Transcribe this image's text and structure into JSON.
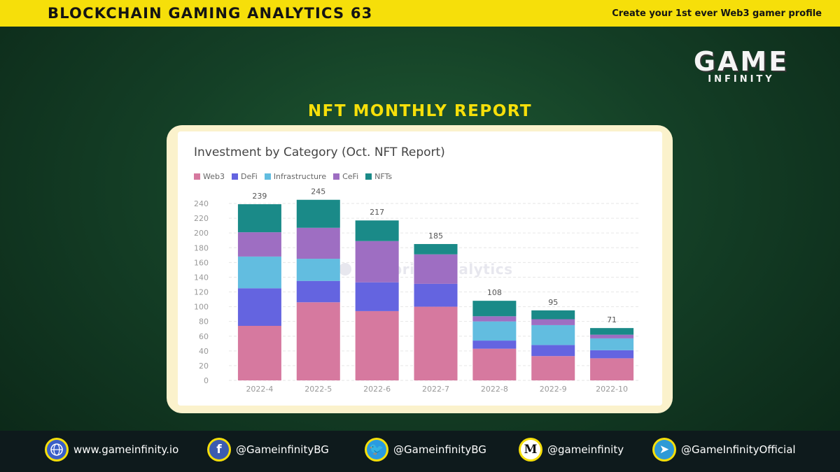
{
  "header": {
    "title": "BLOCKCHAIN GAMING ANALYTICS 63",
    "tagline": "Create your 1st ever Web3 gamer profile"
  },
  "logo": {
    "line1": "GAME",
    "line2": "INFINITY"
  },
  "report_title": "NFT MONTHLY REPORT",
  "watermark": "Footprint Analytics",
  "colors": {
    "accent_yellow": "#f6df0a",
    "Web3": "#d6799f",
    "DeFi": "#6464e0",
    "Infrastructure": "#62bde0",
    "CeFi": "#9e6ec2",
    "NFTs": "#1a8a88"
  },
  "chart_data": {
    "type": "bar",
    "stacked": true,
    "title": "Investment by Category (Oct. NFT Report)",
    "categories": [
      "2022-4",
      "2022-5",
      "2022-6",
      "2022-7",
      "2022-8",
      "2022-9",
      "2022-10"
    ],
    "series": [
      {
        "name": "Web3",
        "values": [
          74,
          106,
          94,
          100,
          43,
          33,
          30
        ]
      },
      {
        "name": "DeFi",
        "values": [
          51,
          29,
          39,
          31,
          11,
          15,
          11
        ]
      },
      {
        "name": "Infrastructure",
        "values": [
          43,
          30,
          0,
          0,
          26,
          27,
          16
        ]
      },
      {
        "name": "CeFi",
        "values": [
          33,
          42,
          56,
          40,
          7,
          8,
          5
        ]
      },
      {
        "name": "NFTs",
        "values": [
          38,
          38,
          28,
          14,
          21,
          12,
          9
        ]
      }
    ],
    "totals": [
      239,
      245,
      217,
      185,
      108,
      95,
      71
    ],
    "yticks": [
      0,
      20,
      40,
      60,
      80,
      100,
      120,
      140,
      160,
      180,
      200,
      220,
      240
    ],
    "ylim": [
      0,
      250
    ],
    "grid": true,
    "legend": "top-left"
  },
  "footer": {
    "links": [
      {
        "icon": "globe-icon",
        "label": "www.gameinfinity.io",
        "color": "#3a5fc8"
      },
      {
        "icon": "facebook-icon",
        "label": "@GameinfinityBG",
        "color": "#3b5bb0",
        "glyph": "f"
      },
      {
        "icon": "twitter-icon",
        "label": "@GameinfinityBG",
        "color": "#2a9be0",
        "glyph": "🐦"
      },
      {
        "icon": "medium-icon",
        "label": "@gameinfinity",
        "color": "#ffffff",
        "glyph": "M"
      },
      {
        "icon": "telegram-icon",
        "label": "@GameInfinityOfficial",
        "color": "#2f9ad6",
        "glyph": "➤"
      }
    ]
  }
}
